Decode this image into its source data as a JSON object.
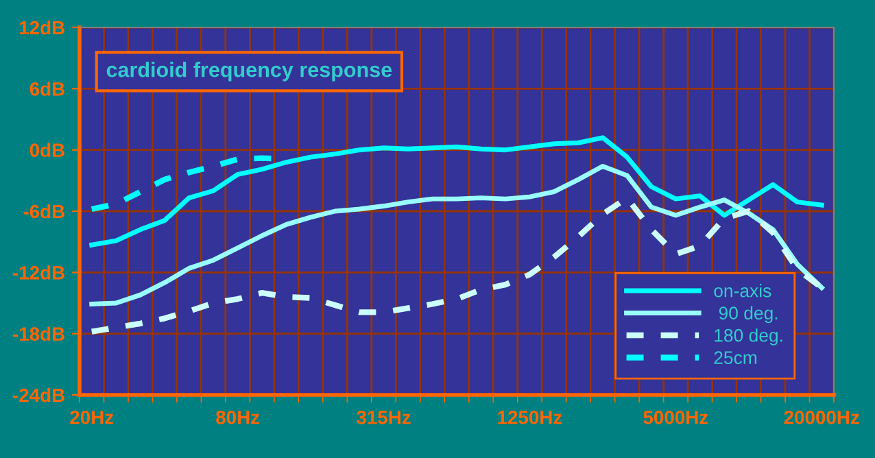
{
  "chart_data": {
    "type": "line",
    "title": "cardioid frequency response",
    "categories": [
      "20Hz",
      null,
      null,
      null,
      null,
      null,
      "80Hz",
      null,
      null,
      null,
      null,
      null,
      "315Hz",
      null,
      null,
      null,
      null,
      null,
      "1250Hz",
      null,
      null,
      null,
      null,
      null,
      "5000Hz",
      null,
      null,
      null,
      null,
      null,
      "20000Hz"
    ],
    "series": [
      {
        "name": "on-axis",
        "color": "#00ffff",
        "line_style": "solid",
        "values": [
          -9.3,
          -8.9,
          -7.8,
          -6.9,
          -4.7,
          -4.0,
          -2.4,
          -1.9,
          -1.2,
          -0.7,
          -0.4,
          0,
          0.2,
          0.1,
          0.2,
          0.3,
          0.1,
          0,
          0.3,
          0.6,
          0.7,
          1.2,
          -0.7,
          -3.6,
          -4.8,
          -4.5,
          -6.4,
          -4.9,
          -3.4,
          -5.1,
          -5.4
        ]
      },
      {
        "name": " 90 deg.",
        "color": "#99ffff",
        "line_style": "solid",
        "values": [
          -15.1,
          -15.0,
          -14.2,
          -13.0,
          -11.6,
          -10.8,
          -9.6,
          -8.4,
          -7.3,
          -6.6,
          -6.0,
          -5.8,
          -5.5,
          -5.1,
          -4.8,
          -4.8,
          -4.7,
          -4.8,
          -4.6,
          -4.1,
          -2.9,
          -1.6,
          -2.5,
          -5.6,
          -6.4,
          -5.6,
          -4.9,
          -6.2,
          -7.8,
          -11.2,
          -13.5
        ]
      },
      {
        "name": "180 deg.",
        "color": "#ccffff",
        "line_style": "dashed",
        "values": [
          -17.8,
          -17.4,
          -17.0,
          -16.5,
          -15.8,
          -15.0,
          -14.6,
          -14.0,
          -14.4,
          -14.5,
          -15.2,
          -15.9,
          -15.9,
          -15.5,
          -15.1,
          -14.6,
          -13.7,
          -13.2,
          -12.2,
          -10.5,
          -8.5,
          -6.3,
          -4.7,
          -7.8,
          -10.2,
          -9.4,
          -6.7,
          -6.0,
          -8.1,
          -11.7,
          -13.5
        ]
      },
      {
        "name": "25cm",
        "color": "#00ffff",
        "line_style": "dashed",
        "values": [
          -5.8,
          -5.3,
          -4.1,
          -2.9,
          -2.2,
          -1.6,
          -0.9,
          -0.8,
          -0.9,
          null,
          null,
          null,
          null,
          null,
          null,
          null,
          null,
          null,
          null,
          null,
          null,
          null,
          null,
          null,
          null,
          null,
          null,
          null,
          null,
          null,
          null
        ]
      }
    ],
    "ylim": [
      -24,
      12
    ],
    "yticks": [
      {
        "value": -24,
        "label": "-24dB"
      },
      {
        "value": -18,
        "label": "-18dB"
      },
      {
        "value": -12,
        "label": "-12dB"
      },
      {
        "value": -6,
        "label": "-6dB"
      },
      {
        "value": 0,
        "label": "0dB"
      },
      {
        "value": 6,
        "label": "6dB"
      },
      {
        "value": 12,
        "label": "12dB"
      }
    ],
    "grid": true,
    "legend": "bottom right",
    "marker": "none"
  }
}
